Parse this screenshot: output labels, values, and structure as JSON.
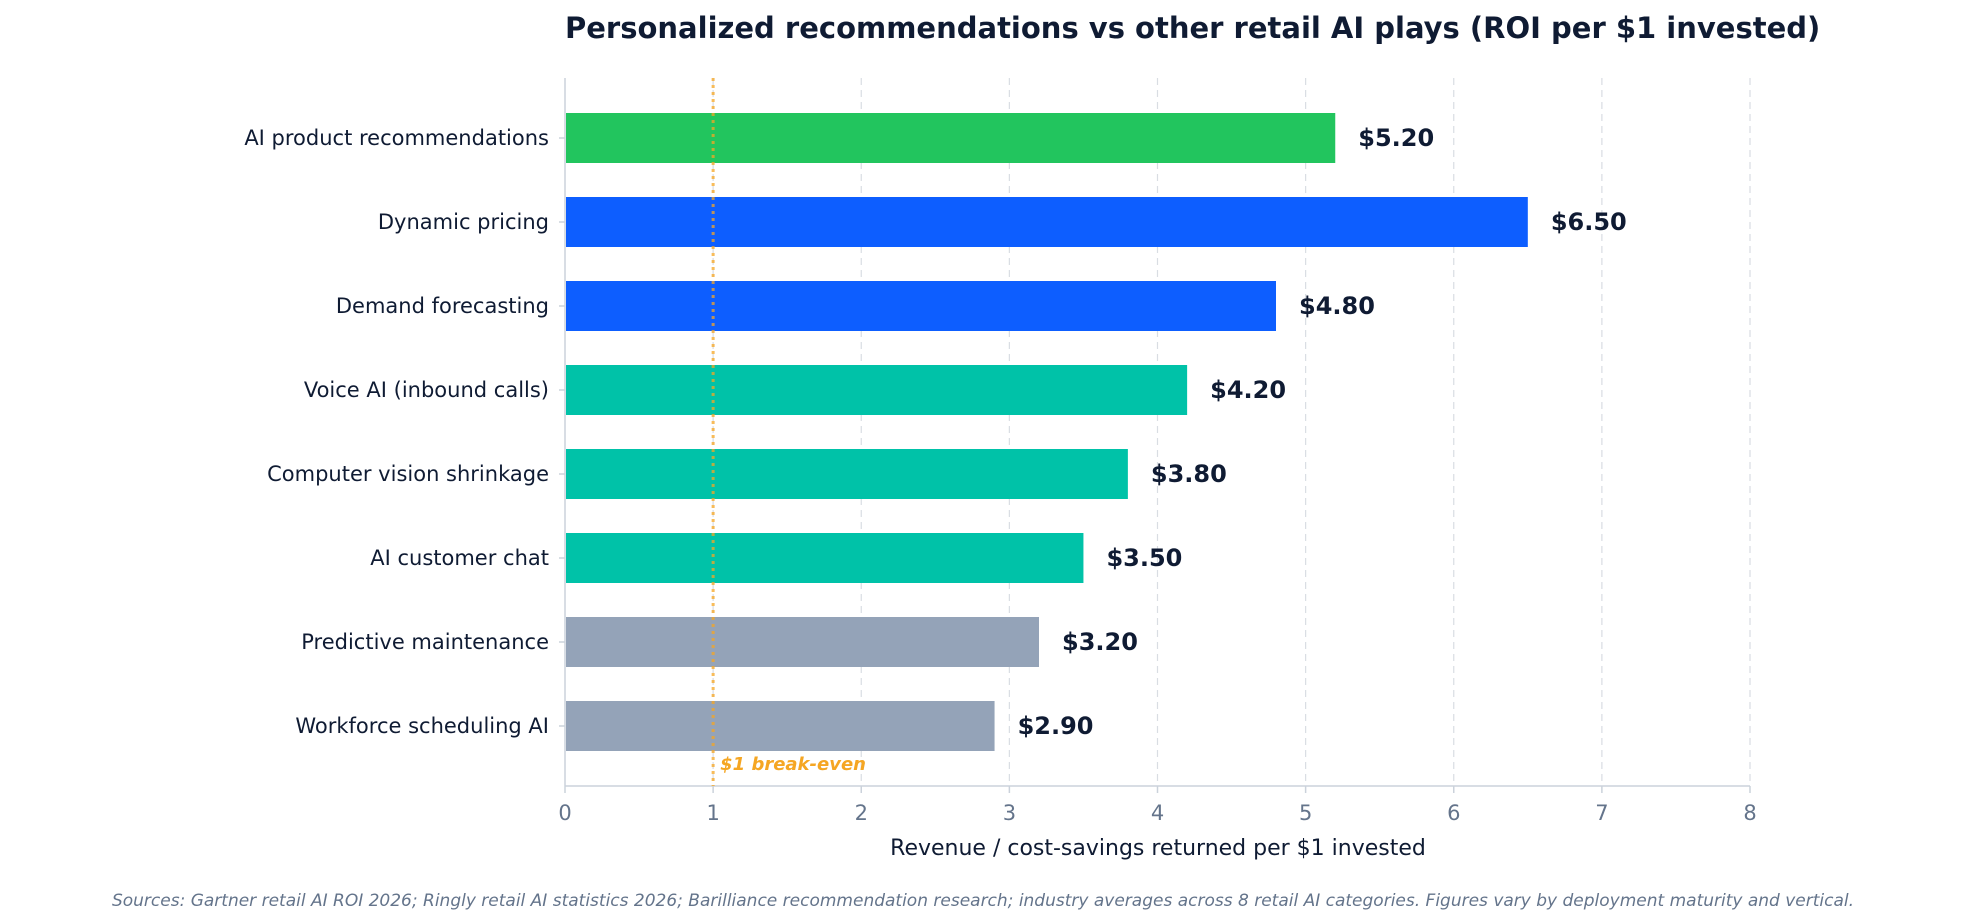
{
  "chart_data": {
    "type": "bar",
    "orientation": "horizontal",
    "title": "Personalized recommendations vs other retail AI plays (ROI per $1 invested)",
    "xlabel": "Revenue / cost-savings returned per $1 invested",
    "ylabel": "",
    "xlim": [
      0,
      8
    ],
    "xticks": [
      "0",
      "1",
      "2",
      "3",
      "4",
      "5",
      "6",
      "7",
      "8"
    ],
    "grid": "x-dashed",
    "categories": [
      "AI product recommendations",
      "Dynamic pricing",
      "Demand forecasting",
      "Voice AI (inbound calls)",
      "Computer vision shrinkage",
      "AI customer chat",
      "Predictive maintenance",
      "Workforce scheduling AI"
    ],
    "values": [
      5.2,
      6.5,
      4.8,
      4.2,
      3.8,
      3.5,
      3.2,
      2.9
    ],
    "value_labels": [
      "$5.20",
      "$6.50",
      "$4.80",
      "$4.20",
      "$3.80",
      "$3.50",
      "$3.20",
      "$2.90"
    ],
    "bar_colors": [
      "#22c55e",
      "#0d5eff",
      "#0d5eff",
      "#00c2a8",
      "#00c2a8",
      "#00c2a8",
      "#94a3b8",
      "#94a3b8"
    ],
    "reference_line": {
      "value": 1,
      "label": "$1 break-even",
      "color": "#f5a623"
    },
    "source_note": "Sources: Gartner retail AI ROI 2026; Ringly retail AI statistics 2026; Barilliance recommendation research; industry averages across 8 retail AI categories. Figures vary by deployment maturity and vertical."
  }
}
